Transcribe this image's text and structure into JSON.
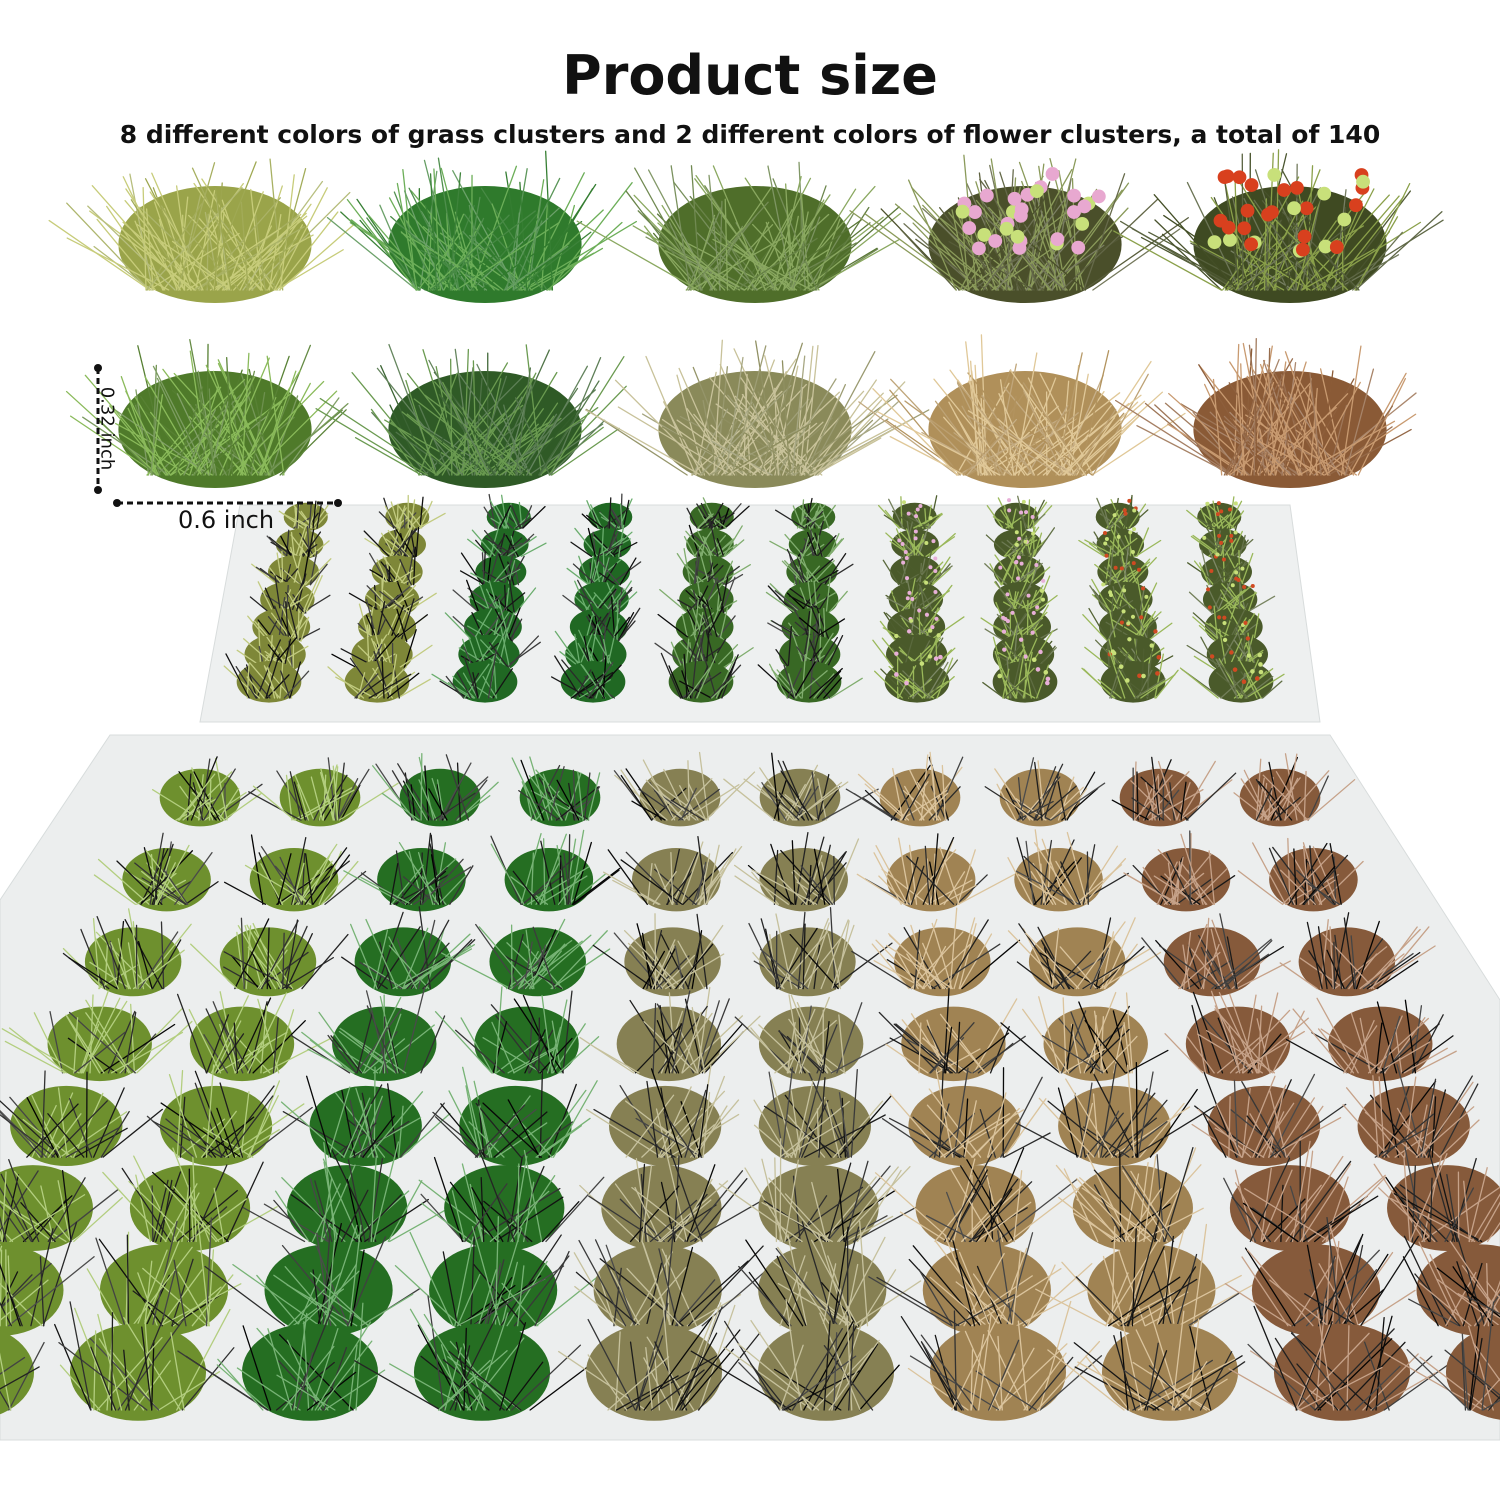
{
  "title": "Product size",
  "subtitle": "8 different colors of grass clusters and 2 different colors of flower clusters, a total of 140",
  "dimensions": {
    "width_label": "0.6 inch",
    "height_label": "0.32 inch"
  },
  "samples": [
    {
      "name": "yellow-green",
      "base": "#9aa44a",
      "tip": "#c7cc7a",
      "flowers": null
    },
    {
      "name": "green",
      "base": "#2f7a2c",
      "tip": "#6cae58",
      "flowers": null
    },
    {
      "name": "dark-green",
      "base": "#4f6e2a",
      "tip": "#8aa860",
      "flowers": null
    },
    {
      "name": "pink-flower",
      "base": "#4a4f2a",
      "tip": "#8a9a5a",
      "flowers": "#e8a8d0"
    },
    {
      "name": "red-flower",
      "base": "#3f4a22",
      "tip": "#8aa04a",
      "flowers": "#d8401e"
    },
    {
      "name": "meadow-green",
      "base": "#4f7a2a",
      "tip": "#8aba5a",
      "flowers": null
    },
    {
      "name": "forest-green",
      "base": "#2f5a26",
      "tip": "#6a9a50",
      "flowers": null
    },
    {
      "name": "khaki",
      "base": "#8a8a5a",
      "tip": "#c8c29a",
      "flowers": null
    },
    {
      "name": "tan",
      "base": "#b0905a",
      "tip": "#e0c898",
      "flowers": null
    },
    {
      "name": "brown",
      "base": "#8a5a36",
      "tip": "#c89a70",
      "flowers": null
    }
  ],
  "top_tray_colors": [
    "#a8b44a",
    "#a8b44a",
    "#2a8a2e",
    "#2a8a2e",
    "#4a8a30",
    "#4a8a30",
    "#e8b0d8",
    "#e8b0d8",
    "#d04a22",
    "#d04a22"
  ],
  "bottom_tray_colors": [
    "#8ab43a",
    "#8ab43a",
    "#2e8a2a",
    "#2e8a2a",
    "#a8a068",
    "#a8a068",
    "#c8a468",
    "#c8a468",
    "#a8704a",
    "#a8704a"
  ]
}
